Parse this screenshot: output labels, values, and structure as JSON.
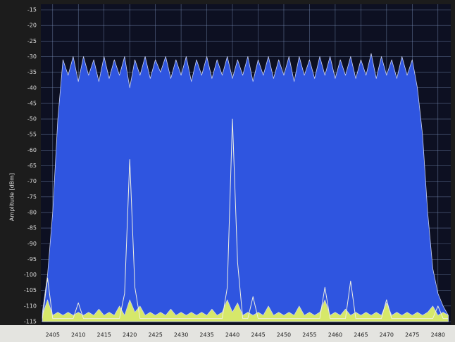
{
  "chart_data": {
    "type": "area",
    "y_label": "Amplitude [dBm]",
    "x": [
      2403,
      2404,
      2405,
      2406,
      2407,
      2408,
      2409,
      2410,
      2411,
      2412,
      2413,
      2414,
      2415,
      2416,
      2417,
      2418,
      2419,
      2420,
      2421,
      2422,
      2423,
      2424,
      2425,
      2426,
      2427,
      2428,
      2429,
      2430,
      2431,
      2432,
      2433,
      2434,
      2435,
      2436,
      2437,
      2438,
      2439,
      2440,
      2441,
      2442,
      2443,
      2444,
      2445,
      2446,
      2447,
      2448,
      2449,
      2450,
      2451,
      2452,
      2453,
      2454,
      2455,
      2456,
      2457,
      2458,
      2459,
      2460,
      2461,
      2462,
      2463,
      2464,
      2465,
      2466,
      2467,
      2468,
      2469,
      2470,
      2471,
      2472,
      2473,
      2474,
      2475,
      2476,
      2477,
      2478,
      2479,
      2480,
      2481,
      2482
    ],
    "series": [
      {
        "color": "#2f55e0",
        "fill": true,
        "values": [
          -112,
          -100,
          -80,
          -50,
          -31,
          -36,
          -30,
          -38,
          -30,
          -36,
          -31,
          -38,
          -30,
          -37,
          -31,
          -36,
          -30,
          -40,
          -31,
          -36,
          -30,
          -37,
          -31,
          -35,
          -30,
          -37,
          -31,
          -36,
          -30,
          -38,
          -31,
          -36,
          -30,
          -37,
          -31,
          -36,
          -30,
          -37,
          -31,
          -36,
          -30,
          -38,
          -31,
          -36,
          -30,
          -37,
          -31,
          -36,
          -30,
          -38,
          -30,
          -36,
          -31,
          -37,
          -30,
          -36,
          -30,
          -37,
          -31,
          -36,
          -30,
          -37,
          -31,
          -36,
          -29,
          -37,
          -30,
          -36,
          -31,
          -37,
          -30,
          -36,
          -31,
          -40,
          -55,
          -80,
          -98,
          -106,
          -110,
          -113
        ]
      },
      {
        "color": "#d6e86a",
        "fill": true,
        "values": [
          -113,
          -108,
          -113,
          -112,
          -113,
          -112,
          -113,
          -112,
          -113,
          -112,
          -113,
          -111,
          -113,
          -112,
          -113,
          -110,
          -113,
          -108,
          -112,
          -110,
          -113,
          -112,
          -113,
          -112,
          -113,
          -111,
          -113,
          -112,
          -113,
          -112,
          -113,
          -112,
          -113,
          -111,
          -113,
          -112,
          -108,
          -112,
          -109,
          -113,
          -112,
          -113,
          -112,
          -113,
          -110,
          -113,
          -112,
          -113,
          -112,
          -113,
          -110,
          -113,
          -112,
          -113,
          -112,
          -108,
          -113,
          -112,
          -113,
          -111,
          -113,
          -112,
          -113,
          -112,
          -113,
          -112,
          -113,
          -109,
          -113,
          -112,
          -113,
          -112,
          -113,
          -112,
          -113,
          -112,
          -110,
          -113,
          -112,
          -113
        ]
      },
      {
        "color": "#f0f0e0",
        "fill": false,
        "values": [
          -114,
          -101,
          -114,
          -114,
          -114,
          -114,
          -114,
          -109,
          -114,
          -114,
          -114,
          -114,
          -114,
          -114,
          -114,
          -114,
          -106,
          -63,
          -104,
          -114,
          -114,
          -114,
          -114,
          -114,
          -114,
          -114,
          -114,
          -114,
          -114,
          -114,
          -114,
          -114,
          -114,
          -114,
          -114,
          -114,
          -104,
          -50,
          -96,
          -114,
          -114,
          -107,
          -114,
          -114,
          -114,
          -114,
          -114,
          -114,
          -114,
          -114,
          -114,
          -114,
          -114,
          -114,
          -114,
          -104,
          -114,
          -114,
          -114,
          -114,
          -102,
          -114,
          -114,
          -114,
          -114,
          -114,
          -114,
          -108,
          -114,
          -114,
          -114,
          -114,
          -114,
          -114,
          -114,
          -114,
          -114,
          -110,
          -114,
          -114
        ]
      }
    ],
    "xlim": [
      2402.7,
      2482.5
    ],
    "xticks": [
      2405,
      2410,
      2415,
      2420,
      2425,
      2430,
      2435,
      2440,
      2445,
      2450,
      2455,
      2460,
      2465,
      2470,
      2475,
      2480
    ],
    "ylim": [
      -115,
      -15
    ],
    "yticks": [
      -15,
      -20,
      -25,
      -30,
      -35,
      -40,
      -45,
      -50,
      -55,
      -60,
      -65,
      -70,
      -75,
      -80,
      -85,
      -90,
      -95,
      -100,
      -105,
      -110,
      -115
    ],
    "grid": true
  }
}
